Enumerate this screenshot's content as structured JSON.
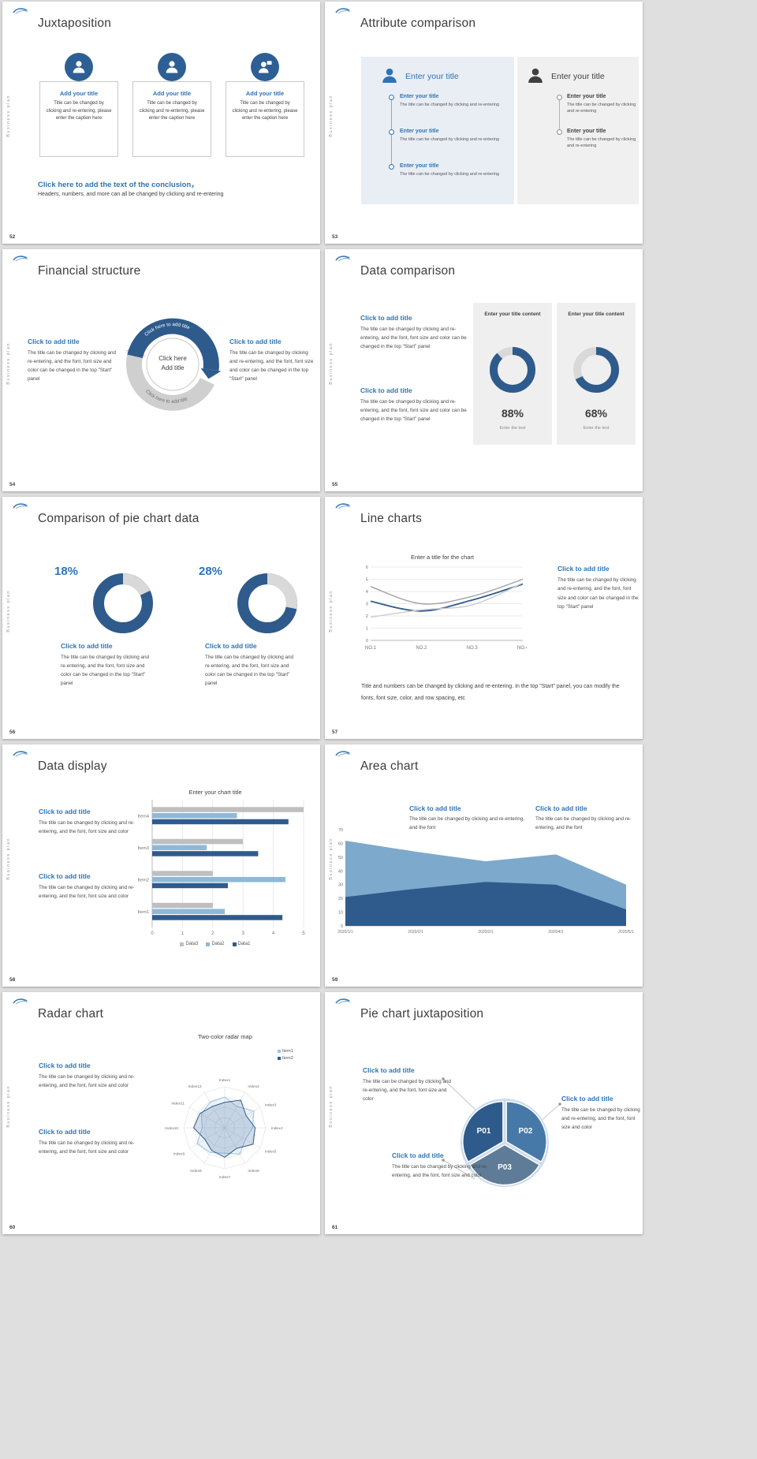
{
  "colors": {
    "accent_blue": "#2e74b5",
    "dark_blue": "#2e5b8c",
    "mid_blue": "#4779a8",
    "light_blue": "#8fb8d8",
    "pale_blue": "#cddceb",
    "slate_blue": "#5e7b97",
    "gray_series": "#bfbfbf",
    "track_gray": "#d9d9d9"
  },
  "common": {
    "sidebar_text": "Business plan"
  },
  "slide52": {
    "page": "52",
    "title": "Juxtaposition",
    "cards": [
      {
        "icon": "person-icon",
        "title": "Add your title",
        "body": "Title can be changed by clicking and re-entering, please enter the caption here"
      },
      {
        "icon": "person-icon",
        "title": "Add your title",
        "body": "Title can be changed by clicking and re-entering, please enter the caption here"
      },
      {
        "icon": "presenter-icon",
        "title": "Add your title",
        "body": "Title can be changed by clicking and re-entering, please enter the caption here"
      }
    ],
    "conclusion_title": "Click here to add the text of the conclusion，",
    "conclusion_body": "Headers, numbers, and more can all be changed by clicking and re-entering"
  },
  "slide53": {
    "page": "53",
    "title": "Attribute comparison",
    "left": {
      "header": "Enter your title",
      "items": [
        {
          "title": "Enter your title",
          "body": "The title can be changed by clicking and re-entering"
        },
        {
          "title": "Enter your title",
          "body": "The title can be changed by clicking and re-entering"
        },
        {
          "title": "Enter your title",
          "body": "The title can be changed by clicking and re-entering"
        }
      ]
    },
    "right": {
      "header": "Enter your title",
      "items": [
        {
          "title": "Enter your title",
          "body": "The title can be changed by clicking and re-entering"
        },
        {
          "title": "Enter your title",
          "body": "The title can be changed by clicking and re-entering"
        }
      ]
    }
  },
  "slide54": {
    "page": "54",
    "title": "Financial structure",
    "center_top": "Click here",
    "center_bottom": "Add title",
    "arc_text_top": "Click here to add title",
    "arc_text_bottom": "Click here to add title",
    "left": {
      "title": "Click to add title",
      "body": "The title can be changed by clicking and re-entering, and the font, font size and color can be changed in the top \"Start\" panel"
    },
    "right": {
      "title": "Click to add title",
      "body": "The title can be changed by clicking and re-entering, and the font, font size and color can be changed in the top \"Start\" panel"
    }
  },
  "slide55": {
    "page": "55",
    "title": "Data comparison",
    "blocks": [
      {
        "title": "Click to add title",
        "body": "The title can be changed by clicking and re-entering, and the font, font size and color can be changed in the top \"Start\" panel"
      },
      {
        "title": "Click to add title",
        "body": "The title can be changed by clicking and re-entering, and the font, font size and color can be changed in the top \"Start\" panel"
      }
    ],
    "chart_data": [
      {
        "type": "donut",
        "header": "Enter your title content",
        "percent": 88,
        "percent_label": "88%",
        "caption": "Enter the text"
      },
      {
        "type": "donut",
        "header": "Enter your title content",
        "percent": 68,
        "percent_label": "68%",
        "caption": "Enter the text"
      }
    ]
  },
  "slide56": {
    "page": "56",
    "title": "Comparison of pie chart data",
    "chart_data": [
      {
        "type": "donut",
        "percent": 18,
        "percent_label": "18%",
        "title": "Click to add title",
        "body": "The title can be changed by clicking and re-entering, and the font, font size and color can be changed in the top \"Start\" panel"
      },
      {
        "type": "donut",
        "percent": 28,
        "percent_label": "28%",
        "title": "Click to add title",
        "body": "The title can be changed by clicking and re-entering, and the font, font size and color can be changed in the top \"Start\" panel"
      }
    ]
  },
  "slide57": {
    "page": "57",
    "title": "Line charts",
    "chart_data": {
      "type": "line",
      "title": "Enter a title for the chart",
      "x_labels": [
        "NO.1",
        "NO.2",
        "NO.3",
        "NO.4"
      ],
      "y_ticks": [
        0,
        1,
        2,
        3,
        4,
        5,
        6
      ],
      "ylim": [
        0,
        6
      ],
      "series": [
        {
          "name": "series-dark-blue",
          "color": "#2e5b8c",
          "values": [
            3.2,
            2.4,
            3.3,
            4.6
          ]
        },
        {
          "name": "series-gray",
          "color": "#a0a0a0",
          "values": [
            4.4,
            3.0,
            3.6,
            5.0
          ]
        },
        {
          "name": "series-light-gray",
          "color": "#cccccc",
          "values": [
            1.9,
            2.5,
            2.9,
            4.7
          ]
        }
      ]
    },
    "block": {
      "title": "Click to add title",
      "body": "The title can be changed by clicking and re-entering, and the font, font size and color can be changed in the top \"Start\" panel"
    },
    "footer": "Title and numbers can be changed by clicking and re-entering. In the top \"Start\" panel, you can modify the fonts, font size, color, and row spacing, etc"
  },
  "slide58": {
    "page": "58",
    "title": "Data display",
    "blocks": [
      {
        "title": "Click to add title",
        "body": "The title can be changed by clicking and re-entering, and the font, font size and color"
      },
      {
        "title": "Click to add title",
        "body": "The title can be changed by clicking and re-entering, and the font, font size and color"
      }
    ],
    "chart_data": {
      "type": "bar",
      "orientation": "horizontal",
      "title": "Enter your chart title",
      "categories": [
        "Item1",
        "Item2",
        "Item3",
        "Item4"
      ],
      "x_ticks": [
        0,
        1,
        2,
        3,
        4,
        5
      ],
      "xlim": [
        0,
        5
      ],
      "series": [
        {
          "name": "Data1",
          "color": "#2e5b8c",
          "values": [
            4.3,
            2.5,
            3.5,
            4.5
          ]
        },
        {
          "name": "Data2",
          "color": "#8fb8d8",
          "values": [
            2.4,
            4.4,
            1.8,
            2.8
          ]
        },
        {
          "name": "Data3",
          "color": "#bfbfbf",
          "values": [
            2.0,
            2.0,
            3.0,
            5.0
          ]
        }
      ]
    }
  },
  "slide59": {
    "page": "59",
    "title": "Area chart",
    "blocks": [
      {
        "title": "Click to add title",
        "body": "The title can be changed by clicking and re-entering, and the font"
      },
      {
        "title": "Click to add title",
        "body": "The title can be changed by clicking and re-entering, and the font"
      }
    ],
    "chart_data": {
      "type": "area",
      "x_labels": [
        "2020/1/1",
        "2020/2/1",
        "2020/3/1",
        "2020/4/1",
        "2020/5/1"
      ],
      "y_ticks": [
        0,
        10,
        20,
        30,
        40,
        50,
        60,
        70
      ],
      "ylim": [
        0,
        70
      ],
      "series": [
        {
          "name": "series-light",
          "color": "#7da9cc",
          "values": [
            62,
            54,
            47,
            52,
            30
          ]
        },
        {
          "name": "series-dark",
          "color": "#2e5b8c",
          "values": [
            21,
            27,
            32,
            30,
            12
          ]
        }
      ]
    }
  },
  "slide60": {
    "page": "60",
    "title": "Radar chart",
    "blocks": [
      {
        "title": "Click to add title",
        "body": "The title can be changed by clicking and re-entering, and the font, font size and color"
      },
      {
        "title": "Click to add title",
        "body": "The title can be changed by clicking and re-entering, and the font, font size and color"
      }
    ],
    "chart_data": {
      "type": "radar",
      "title": "Two-color radar map",
      "axes": [
        "Index1",
        "Index2",
        "Index3",
        "Index4",
        "Index5",
        "Index6",
        "Index7",
        "Index8",
        "Index9",
        "Index10",
        "Index11",
        "Index12"
      ],
      "series": [
        {
          "name": "Item1",
          "color": "#9cc3e5",
          "values": [
            0.75,
            0.6,
            0.82,
            0.68,
            0.58,
            0.74,
            0.62,
            0.7,
            0.78,
            0.55,
            0.66,
            0.72
          ]
        },
        {
          "name": "Item2",
          "color": "#2e5b8c",
          "values": [
            0.62,
            0.78,
            0.6,
            0.74,
            0.8,
            0.58,
            0.72,
            0.64,
            0.56,
            0.76,
            0.7,
            0.6
          ]
        }
      ]
    }
  },
  "slide61": {
    "page": "61",
    "title": "Pie chart juxtaposition",
    "chart_data": {
      "type": "pie",
      "segments": [
        {
          "label": "P01",
          "color": "#2e5b8c",
          "from": 240,
          "to": 360
        },
        {
          "label": "P02",
          "color": "#4779a8",
          "from": 0,
          "to": 120
        },
        {
          "label": "P03",
          "color": "#5e7b97",
          "from": 120,
          "to": 240
        }
      ]
    },
    "blocks": [
      {
        "title": "Click to add title",
        "body": "The title can be changed by clicking and re-entering, and the font, font size and color"
      },
      {
        "title": "Click to add title",
        "body": "The title can be changed by clicking and re-entering, and the font, font size and color"
      },
      {
        "title": "Click to add title",
        "body": "The title can be changed by clicking and re-entering, and the font, font size and color"
      }
    ]
  }
}
